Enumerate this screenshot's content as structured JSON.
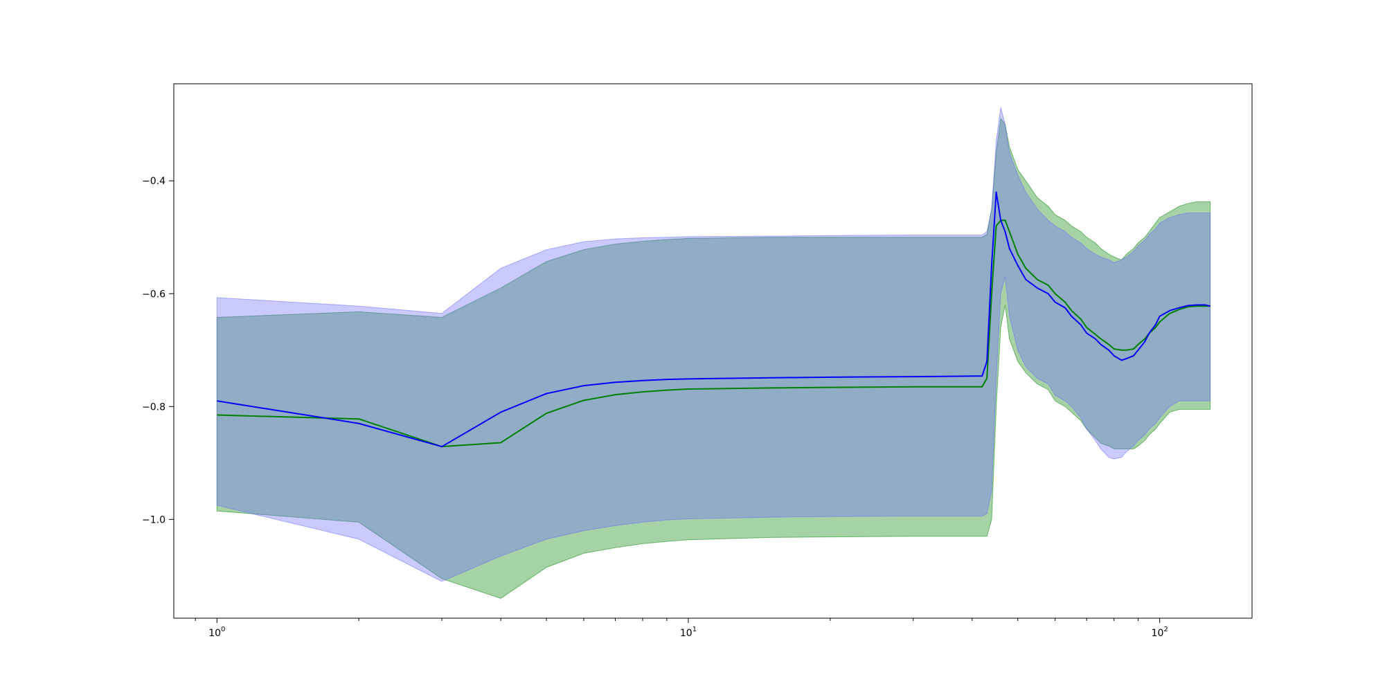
{
  "chart_data": {
    "type": "line",
    "title": "",
    "xlabel": "",
    "ylabel": "",
    "xscale": "log",
    "xlim": [
      0.81,
      157
    ],
    "ylim": [
      -1.175,
      -0.228
    ],
    "grid": false,
    "legend": "none",
    "x_tick_labels": [
      {
        "base": "10",
        "exp": "0",
        "value": 1
      },
      {
        "base": "10",
        "exp": "1",
        "value": 10
      },
      {
        "base": "10",
        "exp": "2",
        "value": 100
      }
    ],
    "y_tick_labels": [
      {
        "label": "−1.0",
        "value": -1.0
      },
      {
        "label": "−0.8",
        "value": -0.8
      },
      {
        "label": "−0.6",
        "value": -0.6
      },
      {
        "label": "−0.4",
        "value": -0.4
      }
    ],
    "series": [
      {
        "color": "#008000",
        "band_color": "#008000",
        "x": [
          1,
          2,
          3,
          4,
          5,
          6,
          7,
          8,
          9,
          10,
          15,
          20,
          30,
          40,
          42,
          43,
          44,
          45,
          46,
          47,
          48,
          50,
          52,
          55,
          58,
          60,
          63,
          65,
          68,
          70,
          73,
          75,
          78,
          80,
          83,
          85,
          88,
          90,
          93,
          95,
          98,
          100,
          105,
          110,
          115,
          120,
          125,
          128
        ],
        "values": [
          -0.815,
          -0.822,
          -0.871,
          -0.864,
          -0.812,
          -0.789,
          -0.779,
          -0.774,
          -0.771,
          -0.769,
          -0.767,
          -0.766,
          -0.765,
          -0.765,
          -0.765,
          -0.75,
          -0.6,
          -0.48,
          -0.47,
          -0.47,
          -0.49,
          -0.53,
          -0.555,
          -0.575,
          -0.585,
          -0.6,
          -0.615,
          -0.63,
          -0.645,
          -0.66,
          -0.672,
          -0.68,
          -0.69,
          -0.698,
          -0.7,
          -0.7,
          -0.698,
          -0.69,
          -0.68,
          -0.67,
          -0.66,
          -0.65,
          -0.635,
          -0.628,
          -0.623,
          -0.622,
          -0.622,
          -0.622
        ],
        "lower": [
          -0.985,
          -1.005,
          -1.105,
          -1.14,
          -1.085,
          -1.06,
          -1.05,
          -1.043,
          -1.039,
          -1.036,
          -1.032,
          -1.031,
          -1.03,
          -1.03,
          -1.03,
          -1.03,
          -1.0,
          -0.8,
          -0.66,
          -0.62,
          -0.68,
          -0.72,
          -0.74,
          -0.76,
          -0.77,
          -0.79,
          -0.8,
          -0.81,
          -0.825,
          -0.84,
          -0.855,
          -0.865,
          -0.87,
          -0.875,
          -0.875,
          -0.875,
          -0.875,
          -0.87,
          -0.86,
          -0.85,
          -0.84,
          -0.83,
          -0.81,
          -0.805,
          -0.805,
          -0.805,
          -0.805,
          -0.805
        ],
        "upper": [
          -0.642,
          -0.632,
          -0.642,
          -0.59,
          -0.543,
          -0.522,
          -0.512,
          -0.507,
          -0.504,
          -0.502,
          -0.5,
          -0.5,
          -0.5,
          -0.5,
          -0.5,
          -0.495,
          -0.45,
          -0.35,
          -0.29,
          -0.3,
          -0.34,
          -0.38,
          -0.4,
          -0.43,
          -0.445,
          -0.46,
          -0.47,
          -0.48,
          -0.49,
          -0.5,
          -0.51,
          -0.52,
          -0.53,
          -0.535,
          -0.54,
          -0.53,
          -0.52,
          -0.51,
          -0.5,
          -0.49,
          -0.475,
          -0.465,
          -0.455,
          -0.445,
          -0.44,
          -0.437,
          -0.437,
          -0.437
        ]
      },
      {
        "color": "#0000ff",
        "band_color": "#6666ff",
        "x": [
          1,
          2,
          3,
          4,
          5,
          6,
          7,
          8,
          9,
          10,
          15,
          20,
          30,
          40,
          42,
          43,
          44,
          45,
          46,
          47,
          48,
          50,
          52,
          55,
          58,
          60,
          63,
          65,
          68,
          70,
          73,
          75,
          78,
          80,
          83,
          85,
          88,
          90,
          93,
          95,
          98,
          100,
          105,
          110,
          115,
          120,
          125,
          128
        ],
        "values": [
          -0.79,
          -0.83,
          -0.871,
          -0.81,
          -0.777,
          -0.763,
          -0.757,
          -0.754,
          -0.752,
          -0.751,
          -0.749,
          -0.748,
          -0.747,
          -0.746,
          -0.746,
          -0.72,
          -0.55,
          -0.42,
          -0.47,
          -0.49,
          -0.52,
          -0.55,
          -0.575,
          -0.59,
          -0.6,
          -0.615,
          -0.625,
          -0.64,
          -0.655,
          -0.67,
          -0.68,
          -0.69,
          -0.7,
          -0.71,
          -0.718,
          -0.715,
          -0.71,
          -0.7,
          -0.685,
          -0.67,
          -0.655,
          -0.64,
          -0.63,
          -0.625,
          -0.621,
          -0.62,
          -0.62,
          -0.622
        ],
        "lower": [
          -0.975,
          -1.035,
          -1.11,
          -1.065,
          -1.035,
          -1.02,
          -1.011,
          -1.005,
          -1.001,
          -0.999,
          -0.996,
          -0.995,
          -0.994,
          -0.994,
          -0.994,
          -0.99,
          -0.95,
          -0.75,
          -0.6,
          -0.57,
          -0.64,
          -0.7,
          -0.73,
          -0.75,
          -0.76,
          -0.78,
          -0.79,
          -0.8,
          -0.82,
          -0.84,
          -0.86,
          -0.875,
          -0.89,
          -0.893,
          -0.89,
          -0.88,
          -0.87,
          -0.86,
          -0.85,
          -0.84,
          -0.83,
          -0.82,
          -0.8,
          -0.79,
          -0.79,
          -0.79,
          -0.79,
          -0.79
        ],
        "upper": [
          -0.607,
          -0.622,
          -0.635,
          -0.555,
          -0.522,
          -0.508,
          -0.503,
          -0.501,
          -0.5,
          -0.499,
          -0.498,
          -0.497,
          -0.496,
          -0.496,
          -0.496,
          -0.49,
          -0.45,
          -0.33,
          -0.27,
          -0.3,
          -0.35,
          -0.39,
          -0.42,
          -0.45,
          -0.47,
          -0.48,
          -0.49,
          -0.5,
          -0.51,
          -0.52,
          -0.53,
          -0.535,
          -0.54,
          -0.545,
          -0.54,
          -0.535,
          -0.525,
          -0.515,
          -0.505,
          -0.495,
          -0.485,
          -0.475,
          -0.465,
          -0.46,
          -0.457,
          -0.457,
          -0.457,
          -0.457
        ]
      }
    ]
  }
}
